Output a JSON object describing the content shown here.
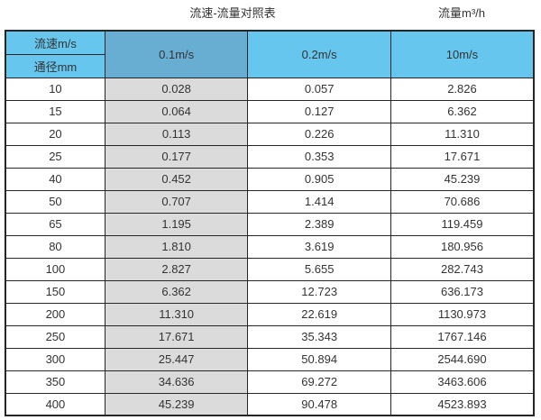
{
  "titles": {
    "left": "流速-流量对照表",
    "right": "流量m³/h"
  },
  "chart_data": {
    "type": "table",
    "title": "流速-流量对照表",
    "unit_label": "流量m³/h",
    "corner": {
      "top": "流速m/s",
      "bottom": "通径mm"
    },
    "velocity_columns": [
      "0.1m/s",
      "0.2m/s",
      "10m/s"
    ],
    "rows": [
      {
        "diameter_mm": "10",
        "flows": [
          "0.028",
          "0.057",
          "2.826"
        ]
      },
      {
        "diameter_mm": "15",
        "flows": [
          "0.064",
          "0.127",
          "6.362"
        ]
      },
      {
        "diameter_mm": "20",
        "flows": [
          "0.113",
          "0.226",
          "11.310"
        ]
      },
      {
        "diameter_mm": "25",
        "flows": [
          "0.177",
          "0.353",
          "17.671"
        ]
      },
      {
        "diameter_mm": "40",
        "flows": [
          "0.452",
          "0.905",
          "45.239"
        ]
      },
      {
        "diameter_mm": "50",
        "flows": [
          "0.707",
          "1.414",
          "70.686"
        ]
      },
      {
        "diameter_mm": "65",
        "flows": [
          "1.195",
          "2.389",
          "119.459"
        ]
      },
      {
        "diameter_mm": "80",
        "flows": [
          "1.810",
          "3.619",
          "180.956"
        ]
      },
      {
        "diameter_mm": "100",
        "flows": [
          "2.827",
          "5.655",
          "282.743"
        ]
      },
      {
        "diameter_mm": "150",
        "flows": [
          "6.362",
          "12.723",
          "636.173"
        ]
      },
      {
        "diameter_mm": "200",
        "flows": [
          "11.310",
          "22.619",
          "1130.973"
        ]
      },
      {
        "diameter_mm": "250",
        "flows": [
          "17.671",
          "35.343",
          "1767.146"
        ]
      },
      {
        "diameter_mm": "300",
        "flows": [
          "25.447",
          "50.894",
          "2544.690"
        ]
      },
      {
        "diameter_mm": "350",
        "flows": [
          "34.636",
          "69.272",
          "3463.606"
        ]
      },
      {
        "diameter_mm": "400",
        "flows": [
          "45.239",
          "90.478",
          "4523.893"
        ]
      }
    ]
  },
  "colors": {
    "header_blue": "#67C6EE",
    "header_steel_blue": "#68AED2",
    "col_gray": "#DBDBDB",
    "border": "#262626",
    "text": "#333333"
  }
}
